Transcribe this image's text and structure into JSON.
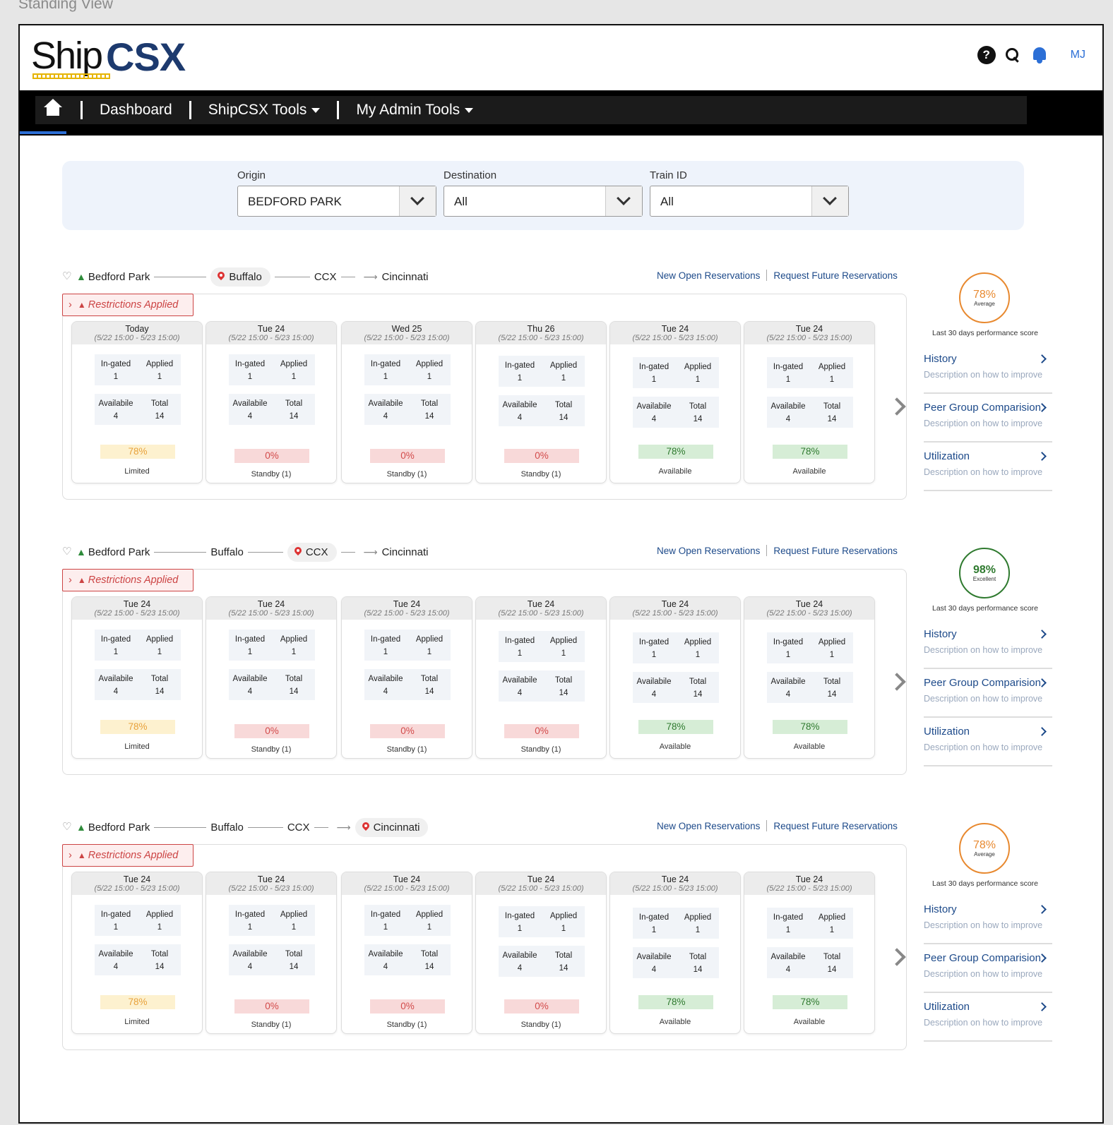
{
  "frame_title": "Standing View",
  "header": {
    "logo_ship": "Ship",
    "logo_csx": "CSX",
    "help_glyph": "?",
    "avatar": "MJ"
  },
  "nav": {
    "items": [
      "Dashboard",
      "ShipCSX Tools",
      "My Admin Tools"
    ]
  },
  "filters": {
    "origin": {
      "label": "Origin",
      "value": "BEDFORD PARK"
    },
    "destination": {
      "label": "Destination",
      "value": "All"
    },
    "train_id": {
      "label": "Train ID",
      "value": "All"
    }
  },
  "labels": {
    "new": "New",
    "open_reservations": "Open Reservations",
    "request_future": "Request Future Reservations",
    "restrictions": "Restrictions Applied",
    "in_gated": "In-gated",
    "applied": "Applied",
    "available_stat": "Availabile",
    "total": "Total",
    "perf_caption": "Last 30 days performance score",
    "history": "History",
    "peer": "Peer Group Comparision",
    "utilization": "Utilization",
    "desc": "Description on how to improve"
  },
  "sections": [
    {
      "route": [
        "Bedford Park",
        "Buffalo",
        "CCX",
        "Cincinnati"
      ],
      "active_stop": 1,
      "score": {
        "value": "78%",
        "word": "Average",
        "tone": "orange"
      },
      "cards": [
        {
          "day": "Today",
          "range": "(5/22 15:00 - 5/23 15:00)",
          "in_gated": "1",
          "applied": "1",
          "available": "4",
          "total": "14",
          "pct": "78%",
          "tone": "yellow",
          "status": "Limited"
        },
        {
          "day": "Tue 24",
          "range": "(5/22 15:00 - 5/23 15:00)",
          "in_gated": "1",
          "applied": "1",
          "available": "4",
          "total": "14",
          "pct": "0%",
          "tone": "red",
          "status": "Standby (1)"
        },
        {
          "day": "Wed 25",
          "range": "(5/22 15:00 - 5/23 15:00)",
          "in_gated": "1",
          "applied": "1",
          "available": "4",
          "total": "14",
          "pct": "0%",
          "tone": "red",
          "status": "Standby (1)"
        },
        {
          "day": "Thu 26",
          "range": "(5/22 15:00 - 5/23 15:00)",
          "in_gated": "1",
          "applied": "1",
          "available": "4",
          "total": "14",
          "pct": "0%",
          "tone": "red",
          "status": "Standby (1)"
        },
        {
          "day": "Tue 24",
          "range": "(5/22 15:00 - 5/23 15:00)",
          "in_gated": "1",
          "applied": "1",
          "available": "4",
          "total": "14",
          "pct": "78%",
          "tone": "green",
          "status": "Availabile"
        },
        {
          "day": "Tue 24",
          "range": "(5/22 15:00 - 5/23 15:00)",
          "in_gated": "1",
          "applied": "1",
          "available": "4",
          "total": "14",
          "pct": "78%",
          "tone": "green",
          "status": "Availabile"
        }
      ]
    },
    {
      "route": [
        "Bedford Park",
        "Buffalo",
        "CCX",
        "Cincinnati"
      ],
      "active_stop": 2,
      "score": {
        "value": "98%",
        "word": "Excellent",
        "tone": "green"
      },
      "cards": [
        {
          "day": "Tue 24",
          "range": "(5/22 15:00 - 5/23 15:00)",
          "in_gated": "1",
          "applied": "1",
          "available": "4",
          "total": "14",
          "pct": "78%",
          "tone": "yellow",
          "status": "Limited"
        },
        {
          "day": "Tue 24",
          "range": "(5/22 15:00 - 5/23 15:00)",
          "in_gated": "1",
          "applied": "1",
          "available": "4",
          "total": "14",
          "pct": "0%",
          "tone": "red",
          "status": "Standby (1)"
        },
        {
          "day": "Tue 24",
          "range": "(5/22 15:00 - 5/23 15:00)",
          "in_gated": "1",
          "applied": "1",
          "available": "4",
          "total": "14",
          "pct": "0%",
          "tone": "red",
          "status": "Standby (1)"
        },
        {
          "day": "Tue 24",
          "range": "(5/22 15:00 - 5/23 15:00)",
          "in_gated": "1",
          "applied": "1",
          "available": "4",
          "total": "14",
          "pct": "0%",
          "tone": "red",
          "status": "Standby (1)"
        },
        {
          "day": "Tue 24",
          "range": "(5/22 15:00 - 5/23 15:00)",
          "in_gated": "1",
          "applied": "1",
          "available": "4",
          "total": "14",
          "pct": "78%",
          "tone": "green",
          "status": "Available"
        },
        {
          "day": "Tue 24",
          "range": "(5/22 15:00 - 5/23 15:00)",
          "in_gated": "1",
          "applied": "1",
          "available": "4",
          "total": "14",
          "pct": "78%",
          "tone": "green",
          "status": "Available"
        }
      ]
    },
    {
      "route": [
        "Bedford Park",
        "Buffalo",
        "CCX",
        "Cincinnati"
      ],
      "active_stop": 3,
      "score": {
        "value": "78%",
        "word": "Average",
        "tone": "orange"
      },
      "cards": [
        {
          "day": "Tue 24",
          "range": "(5/22 15:00 - 5/23 15:00)",
          "in_gated": "1",
          "applied": "1",
          "available": "4",
          "total": "14",
          "pct": "78%",
          "tone": "yellow",
          "status": "Limited"
        },
        {
          "day": "Tue 24",
          "range": "(5/22 15:00 - 5/23 15:00)",
          "in_gated": "1",
          "applied": "1",
          "available": "4",
          "total": "14",
          "pct": "0%",
          "tone": "red",
          "status": "Standby (1)"
        },
        {
          "day": "Tue 24",
          "range": "(5/22 15:00 - 5/23 15:00)",
          "in_gated": "1",
          "applied": "1",
          "available": "4",
          "total": "14",
          "pct": "0%",
          "tone": "red",
          "status": "Standby (1)"
        },
        {
          "day": "Tue 24",
          "range": "(5/22 15:00 - 5/23 15:00)",
          "in_gated": "1",
          "applied": "1",
          "available": "4",
          "total": "14",
          "pct": "0%",
          "tone": "red",
          "status": "Standby (1)"
        },
        {
          "day": "Tue 24",
          "range": "(5/22 15:00 - 5/23 15:00)",
          "in_gated": "1",
          "applied": "1",
          "available": "4",
          "total": "14",
          "pct": "78%",
          "tone": "green",
          "status": "Available"
        },
        {
          "day": "Tue 24",
          "range": "(5/22 15:00 - 5/23 15:00)",
          "in_gated": "1",
          "applied": "1",
          "available": "4",
          "total": "14",
          "pct": "78%",
          "tone": "green",
          "status": "Available"
        }
      ]
    }
  ]
}
